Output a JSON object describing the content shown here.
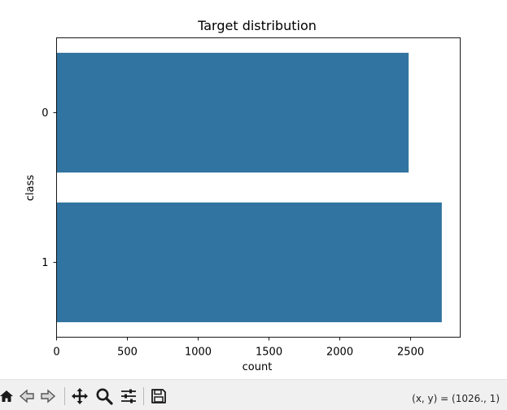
{
  "toolbar": {
    "buttons": [
      {
        "name": "home-icon",
        "label": "Home"
      },
      {
        "name": "back-icon",
        "label": "Back"
      },
      {
        "name": "forward-icon",
        "label": "Forward"
      },
      {
        "name": "pan-icon",
        "label": "Pan"
      },
      {
        "name": "zoom-icon",
        "label": "Zoom"
      },
      {
        "name": "configure-subplots-icon",
        "label": "Subplots"
      },
      {
        "name": "save-icon",
        "label": "Save"
      }
    ],
    "coordinates": "(x, y) = (1026., 1)"
  },
  "colors": {
    "bar": "#3274a1",
    "axis": "#000000",
    "toolbar_bg": "#f0f0f0"
  },
  "chart_data": {
    "type": "bar",
    "orientation": "horizontal",
    "title": "Target distribution",
    "xlabel": "count",
    "ylabel": "class",
    "categories": [
      "0",
      "1"
    ],
    "values": [
      2486,
      2720
    ],
    "xlim": [
      0,
      2850
    ],
    "xticks": [
      0,
      500,
      1000,
      1500,
      2000,
      2500
    ],
    "grid": false,
    "legend": "none"
  }
}
